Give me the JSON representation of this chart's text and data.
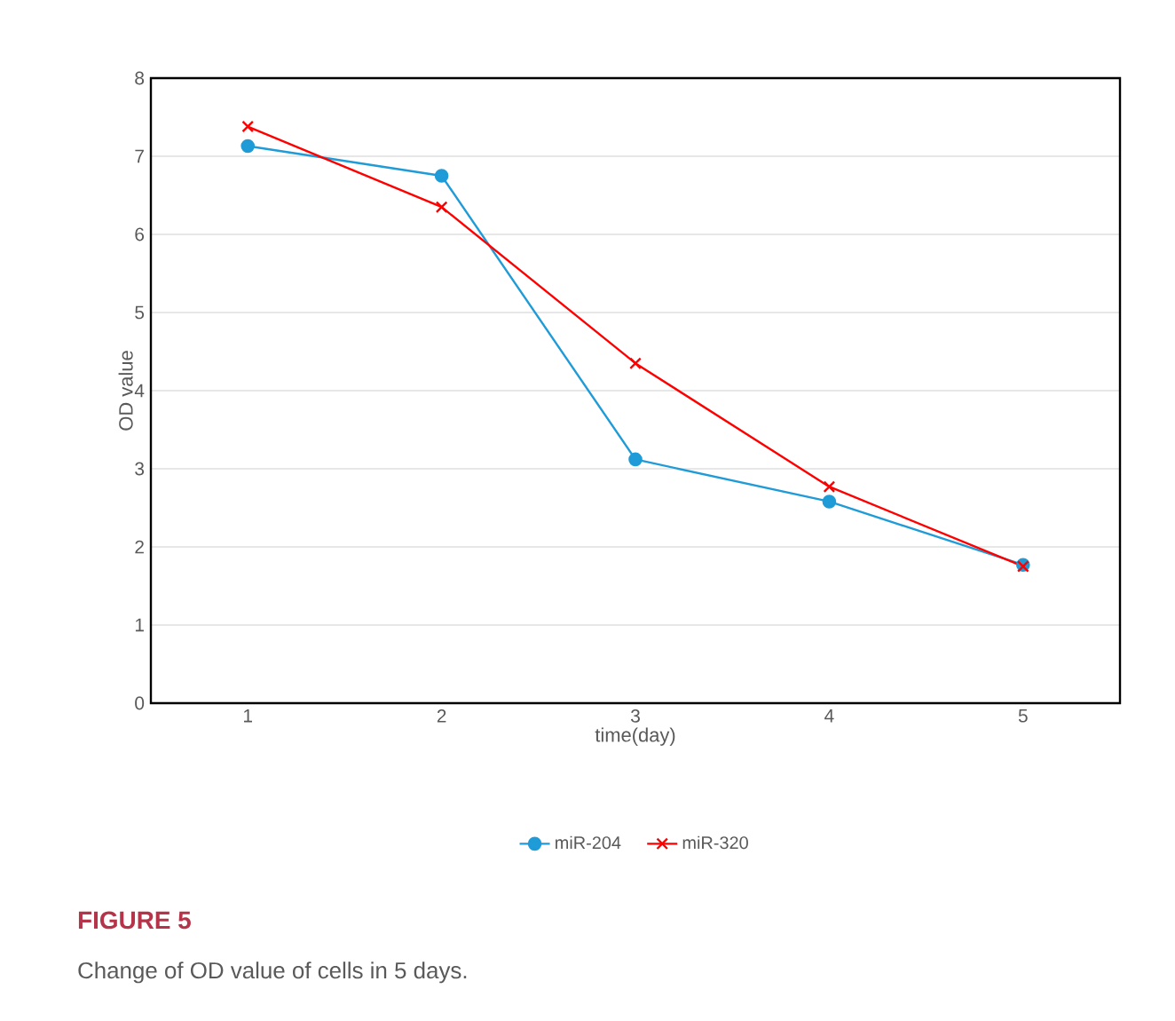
{
  "chart_data": {
    "type": "line",
    "title": "FIGURE 5",
    "subtitle": "Change of OD value of cells in 5 days.",
    "xlabel": "time(day)",
    "ylabel": "OD value",
    "categories": [
      "1",
      "2",
      "3",
      "4",
      "5"
    ],
    "ylim": [
      0,
      8
    ],
    "yticks": [
      0,
      1,
      2,
      3,
      4,
      5,
      6,
      7,
      8
    ],
    "grid": "y",
    "legend": "bottom",
    "series": [
      {
        "name": "miR-204",
        "color": "#1f9bd7",
        "marker": "circle",
        "values": [
          7.13,
          6.75,
          3.12,
          2.58,
          1.77
        ]
      },
      {
        "name": "miR-320",
        "color": "#ff0000",
        "marker": "cross",
        "values": [
          7.38,
          6.35,
          4.35,
          2.77,
          1.75
        ]
      }
    ]
  }
}
